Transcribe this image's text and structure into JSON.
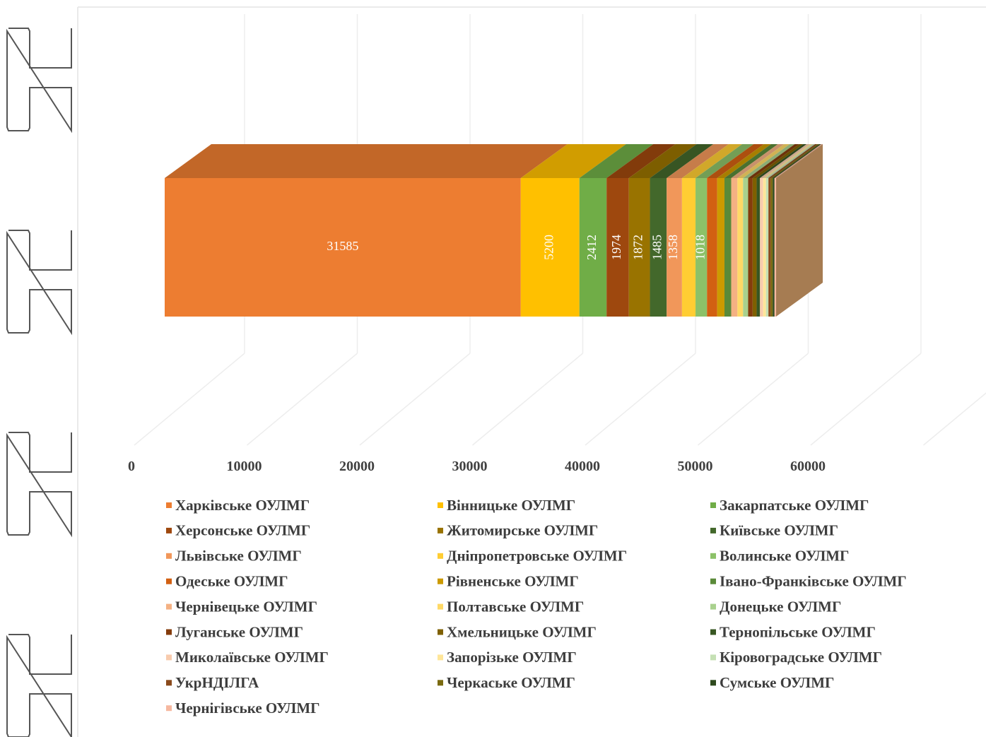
{
  "chart_data": {
    "type": "bar",
    "orientation": "horizontal",
    "stacked": true,
    "three_d": true,
    "title": "",
    "xlabel": "",
    "ylabel": "",
    "xlim": [
      0,
      70000
    ],
    "x_ticks": [
      0,
      10000,
      20000,
      30000,
      40000,
      50000,
      60000
    ],
    "grid": true,
    "legend_position": "bottom",
    "legend_columns": 3,
    "series": [
      {
        "name": "Харківське ОУЛМГ",
        "value": 31585,
        "label": "31585",
        "color": "#ED7D31"
      },
      {
        "name": "Вінницьке ОУЛМГ",
        "value": 5200,
        "label": "5200",
        "color": "#FFC000"
      },
      {
        "name": "Закарпатське ОУЛМГ",
        "value": 2412,
        "label": "2412",
        "color": "#70AD47"
      },
      {
        "name": "Херсонське ОУЛМГ",
        "value": 1974,
        "label": "1974",
        "color": "#9E480E"
      },
      {
        "name": "Житомирське ОУЛМГ",
        "value": 1872,
        "label": "1872",
        "color": "#997300"
      },
      {
        "name": "Київське ОУЛМГ",
        "value": 1485,
        "label": "1485",
        "color": "#43682B"
      },
      {
        "name": "Львівське ОУЛМГ",
        "value": 1358,
        "label": "1358",
        "color": "#F1975A"
      },
      {
        "name": "Дніпропетровське ОУЛМГ",
        "value": 1200,
        "label": "",
        "color": "#FFCD33"
      },
      {
        "name": "Волинське ОУЛМГ",
        "value": 1018,
        "label": "1018",
        "color": "#8CC168"
      },
      {
        "name": "Одеське ОУЛМГ",
        "value": 900,
        "label": "",
        "color": "#D26012"
      },
      {
        "name": "Рівненське ОУЛМГ",
        "value": 650,
        "label": "",
        "color": "#CC9A00"
      },
      {
        "name": "Івано-Франківське ОУЛМГ",
        "value": 600,
        "label": "",
        "color": "#5A8A39"
      },
      {
        "name": "Чернівецьке ОУЛМГ",
        "value": 550,
        "label": "",
        "color": "#F4B183"
      },
      {
        "name": "Полтавське ОУЛМГ",
        "value": 500,
        "label": "",
        "color": "#FFD966"
      },
      {
        "name": "Донецьке ОУЛМГ",
        "value": 450,
        "label": "",
        "color": "#A9D18E"
      },
      {
        "name": "Луганське ОУЛМГ",
        "value": 400,
        "label": "",
        "color": "#843C0C"
      },
      {
        "name": "Хмельницьке ОУЛМГ",
        "value": 350,
        "label": "",
        "color": "#7F6000"
      },
      {
        "name": "Тернопільське ОУЛМГ",
        "value": 300,
        "label": "",
        "color": "#385723"
      },
      {
        "name": "Миколаївське ОУЛМГ",
        "value": 280,
        "label": "",
        "color": "#F8CBAD"
      },
      {
        "name": "Запорізьке ОУЛМГ",
        "value": 250,
        "label": "",
        "color": "#FFE699"
      },
      {
        "name": "Кіровоградське ОУЛМГ",
        "value": 220,
        "label": "",
        "color": "#C5E0B4"
      },
      {
        "name": "УкрНДІЛГА",
        "value": 200,
        "label": "",
        "color": "#8A4A1C"
      },
      {
        "name": "Черкаське ОУЛМГ",
        "value": 180,
        "label": "",
        "color": "#7A6A10"
      },
      {
        "name": "Сумське ОУЛМГ",
        "value": 160,
        "label": "",
        "color": "#2E4A1E"
      },
      {
        "name": "Чернігівське ОУЛМГ",
        "value": 140,
        "label": "",
        "color": "#F6B8A0"
      }
    ]
  },
  "side_markers": {
    "icon": "bracket-shape-icon",
    "count": 4,
    "color": "#555555"
  }
}
